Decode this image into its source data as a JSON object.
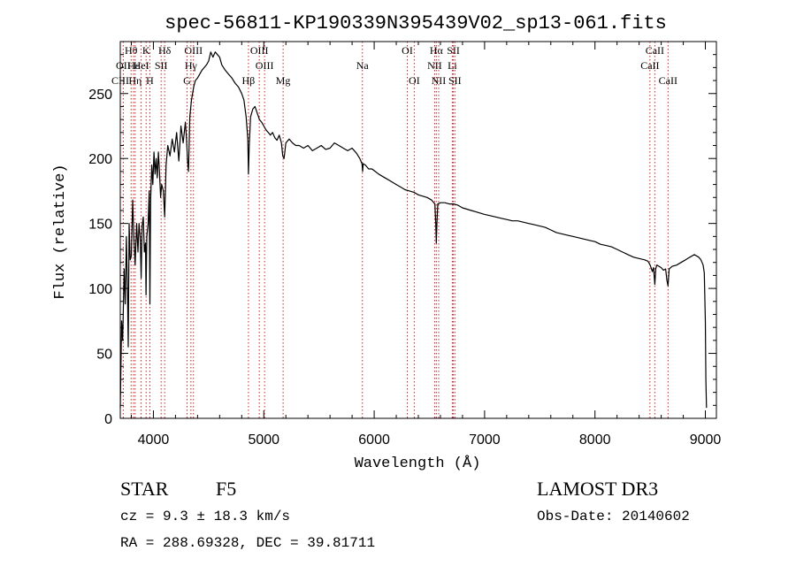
{
  "chart_data": {
    "type": "line",
    "title": "spec-56811-KP190339N395439V02_sp13-061.fits",
    "xlabel": "Wavelength (Å)",
    "ylabel": "Flux (relative)",
    "xlim": [
      3700,
      9100
    ],
    "ylim": [
      0,
      290
    ],
    "xticks": [
      4000,
      5000,
      6000,
      7000,
      8000,
      9000
    ],
    "yticks": [
      0,
      50,
      100,
      150,
      200,
      250
    ],
    "series": [
      {
        "name": "spectrum",
        "points": [
          [
            3700,
            8
          ],
          [
            3712,
            75
          ],
          [
            3722,
            60
          ],
          [
            3735,
            115
          ],
          [
            3745,
            88
          ],
          [
            3755,
            140
          ],
          [
            3765,
            100
          ],
          [
            3772,
            55
          ],
          [
            3780,
            150
          ],
          [
            3790,
            122
          ],
          [
            3800,
            125
          ],
          [
            3812,
            168
          ],
          [
            3822,
            142
          ],
          [
            3835,
            118
          ],
          [
            3848,
            150
          ],
          [
            3860,
            128
          ],
          [
            3870,
            150
          ],
          [
            3880,
            140
          ],
          [
            3889,
            108
          ],
          [
            3898,
            148
          ],
          [
            3908,
            155
          ],
          [
            3918,
            128
          ],
          [
            3928,
            135
          ],
          [
            3933,
            95
          ],
          [
            3940,
            140
          ],
          [
            3952,
            150
          ],
          [
            3962,
            175
          ],
          [
            3968,
            88
          ],
          [
            3975,
            168
          ],
          [
            3985,
            195
          ],
          [
            3995,
            180
          ],
          [
            4005,
            205
          ],
          [
            4015,
            188
          ],
          [
            4025,
            200
          ],
          [
            4035,
            185
          ],
          [
            4045,
            205
          ],
          [
            4055,
            190
          ],
          [
            4065,
            170
          ],
          [
            4075,
            180
          ],
          [
            4090,
            175
          ],
          [
            4102,
            155
          ],
          [
            4115,
            195
          ],
          [
            4130,
            210
          ],
          [
            4150,
            202
          ],
          [
            4170,
            215
          ],
          [
            4190,
            205
          ],
          [
            4210,
            220
          ],
          [
            4230,
            198
          ],
          [
            4250,
            225
          ],
          [
            4270,
            212
          ],
          [
            4290,
            228
          ],
          [
            4300,
            215
          ],
          [
            4310,
            198
          ],
          [
            4318,
            190
          ],
          [
            4330,
            232
          ],
          [
            4345,
            245
          ],
          [
            4365,
            255
          ],
          [
            4380,
            260
          ],
          [
            4400,
            262
          ],
          [
            4420,
            265
          ],
          [
            4440,
            268
          ],
          [
            4460,
            270
          ],
          [
            4480,
            272
          ],
          [
            4500,
            275
          ],
          [
            4520,
            282
          ],
          [
            4540,
            278
          ],
          [
            4560,
            282
          ],
          [
            4580,
            280
          ],
          [
            4600,
            278
          ],
          [
            4620,
            272
          ],
          [
            4650,
            268
          ],
          [
            4680,
            265
          ],
          [
            4710,
            262
          ],
          [
            4740,
            258
          ],
          [
            4770,
            255
          ],
          [
            4800,
            250
          ],
          [
            4820,
            245
          ],
          [
            4840,
            232
          ],
          [
            4855,
            215
          ],
          [
            4861,
            188
          ],
          [
            4868,
            210
          ],
          [
            4880,
            232
          ],
          [
            4900,
            238
          ],
          [
            4920,
            240
          ],
          [
            4940,
            235
          ],
          [
            4960,
            230
          ],
          [
            4980,
            228
          ],
          [
            5000,
            225
          ],
          [
            5020,
            222
          ],
          [
            5040,
            220
          ],
          [
            5060,
            218
          ],
          [
            5080,
            220
          ],
          [
            5100,
            216
          ],
          [
            5120,
            214
          ],
          [
            5140,
            218
          ],
          [
            5160,
            212
          ],
          [
            5172,
            202
          ],
          [
            5184,
            200
          ],
          [
            5200,
            212
          ],
          [
            5230,
            215
          ],
          [
            5260,
            212
          ],
          [
            5290,
            210
          ],
          [
            5320,
            210
          ],
          [
            5360,
            208
          ],
          [
            5400,
            210
          ],
          [
            5440,
            206
          ],
          [
            5480,
            208
          ],
          [
            5520,
            210
          ],
          [
            5560,
            207
          ],
          [
            5600,
            208
          ],
          [
            5640,
            212
          ],
          [
            5680,
            210
          ],
          [
            5720,
            208
          ],
          [
            5760,
            206
          ],
          [
            5800,
            208
          ],
          [
            5840,
            204
          ],
          [
            5870,
            200
          ],
          [
            5890,
            196
          ],
          [
            5895,
            190
          ],
          [
            5900,
            196
          ],
          [
            5920,
            195
          ],
          [
            5950,
            192
          ],
          [
            5980,
            192
          ],
          [
            6010,
            190
          ],
          [
            6040,
            188
          ],
          [
            6080,
            186
          ],
          [
            6120,
            184
          ],
          [
            6160,
            182
          ],
          [
            6200,
            180
          ],
          [
            6240,
            178
          ],
          [
            6280,
            176
          ],
          [
            6320,
            175
          ],
          [
            6360,
            174
          ],
          [
            6400,
            172
          ],
          [
            6440,
            171
          ],
          [
            6480,
            170
          ],
          [
            6520,
            168
          ],
          [
            6550,
            165
          ],
          [
            6558,
            150
          ],
          [
            6563,
            135
          ],
          [
            6568,
            150
          ],
          [
            6576,
            165
          ],
          [
            6600,
            166
          ],
          [
            6640,
            166
          ],
          [
            6680,
            165
          ],
          [
            6720,
            165
          ],
          [
            6760,
            164
          ],
          [
            6800,
            162
          ],
          [
            6840,
            161
          ],
          [
            6880,
            160
          ],
          [
            6920,
            159
          ],
          [
            6960,
            158
          ],
          [
            7000,
            157
          ],
          [
            7050,
            156
          ],
          [
            7100,
            155
          ],
          [
            7150,
            154
          ],
          [
            7200,
            153
          ],
          [
            7250,
            152
          ],
          [
            7300,
            152
          ],
          [
            7350,
            151
          ],
          [
            7400,
            150
          ],
          [
            7450,
            149
          ],
          [
            7500,
            148
          ],
          [
            7550,
            147
          ],
          [
            7600,
            145
          ],
          [
            7650,
            143
          ],
          [
            7700,
            142
          ],
          [
            7750,
            141
          ],
          [
            7800,
            140
          ],
          [
            7850,
            139
          ],
          [
            7900,
            138
          ],
          [
            7950,
            137
          ],
          [
            8000,
            136
          ],
          [
            8050,
            134
          ],
          [
            8100,
            133
          ],
          [
            8150,
            132
          ],
          [
            8200,
            130
          ],
          [
            8250,
            128
          ],
          [
            8300,
            126
          ],
          [
            8350,
            124
          ],
          [
            8400,
            123
          ],
          [
            8450,
            122
          ],
          [
            8480,
            121
          ],
          [
            8500,
            118
          ],
          [
            8520,
            113
          ],
          [
            8530,
            116
          ],
          [
            8542,
            103
          ],
          [
            8550,
            115
          ],
          [
            8560,
            118
          ],
          [
            8580,
            117
          ],
          [
            8600,
            116
          ],
          [
            8620,
            114
          ],
          [
            8640,
            115
          ],
          [
            8652,
            106
          ],
          [
            8662,
            102
          ],
          [
            8672,
            115
          ],
          [
            8700,
            117
          ],
          [
            8740,
            118
          ],
          [
            8780,
            120
          ],
          [
            8820,
            122
          ],
          [
            8860,
            124
          ],
          [
            8900,
            126
          ],
          [
            8940,
            124
          ],
          [
            8960,
            122
          ],
          [
            8980,
            118
          ],
          [
            8990,
            112
          ],
          [
            9000,
            75
          ],
          [
            9005,
            30
          ],
          [
            9010,
            8
          ]
        ]
      }
    ],
    "lines": [
      {
        "label": "Hθ",
        "x": 3798,
        "row": 1
      },
      {
        "label": "OII",
        "x": 3727,
        "row": 2
      },
      {
        "label": "CIII",
        "x": 3700,
        "row": 3
      },
      {
        "label": "Hε",
        "x": 3820,
        "row": 2
      },
      {
        "label": "Hη",
        "x": 3835,
        "row": 3
      },
      {
        "label": "K",
        "x": 3934,
        "row": 1
      },
      {
        "label": "HeI",
        "x": 3889,
        "row": 2
      },
      {
        "label": "H",
        "x": 3968,
        "row": 3
      },
      {
        "label": "SII",
        "x": 4070,
        "row": 2
      },
      {
        "label": "Hδ",
        "x": 4102,
        "row": 1
      },
      {
        "label": "OIII",
        "x": 4363,
        "row": 1
      },
      {
        "label": "Hγ",
        "x": 4340,
        "row": 2
      },
      {
        "label": "G",
        "x": 4305,
        "row": 3
      },
      {
        "label": "Hβ",
        "x": 4861,
        "row": 3
      },
      {
        "label": "OIII",
        "x": 4959,
        "row": 1
      },
      {
        "label": "OIII",
        "x": 5007,
        "row": 2
      },
      {
        "label": "Mg",
        "x": 5175,
        "row": 3
      },
      {
        "label": "Na",
        "x": 5893,
        "row": 2
      },
      {
        "label": "OI",
        "x": 6300,
        "row": 1
      },
      {
        "label": "OI",
        "x": 6363,
        "row": 3
      },
      {
        "label": "Hα",
        "x": 6563,
        "row": 1
      },
      {
        "label": "NII",
        "x": 6548,
        "row": 2
      },
      {
        "label": "NII",
        "x": 6584,
        "row": 3
      },
      {
        "label": "SII",
        "x": 6717,
        "row": 1
      },
      {
        "label": "Li",
        "x": 6708,
        "row": 2
      },
      {
        "label": "SII",
        "x": 6731,
        "row": 3
      },
      {
        "label": "CaII",
        "x": 8542,
        "row": 1
      },
      {
        "label": "CaII",
        "x": 8498,
        "row": 2
      },
      {
        "label": "CaII",
        "x": 8662,
        "row": 3
      }
    ]
  },
  "info": {
    "class_label": "STAR",
    "subclass": "F5",
    "survey": "LAMOST DR3",
    "cz": "cz = 9.3 ± 18.3 km/s",
    "obs_date": "Obs-Date: 20140602",
    "coords": "RA = 288.69328, DEC =  39.81711"
  },
  "colors": {
    "line_marker": "#cc2222",
    "spectrum": "#000000"
  }
}
